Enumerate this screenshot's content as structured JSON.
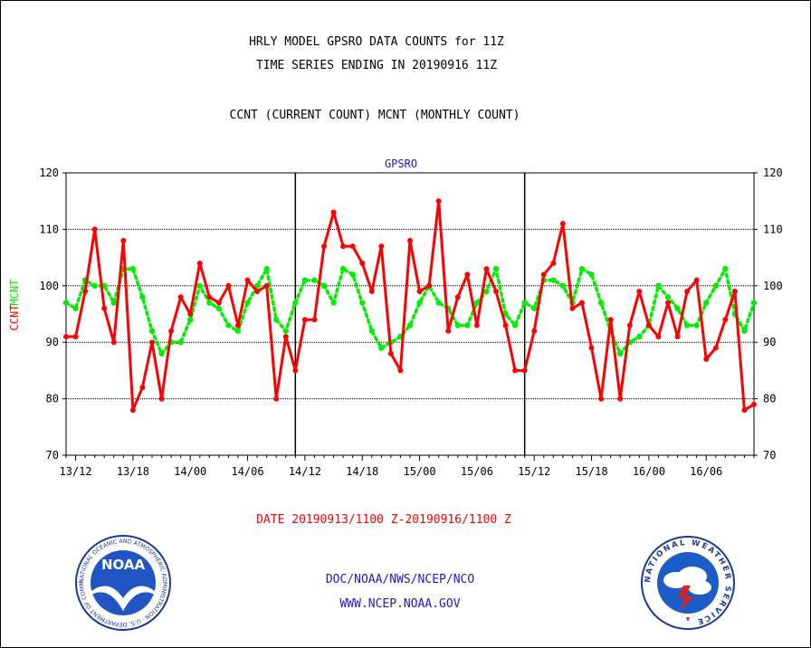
{
  "header": {
    "title_line1": "HRLY MODEL GPSRO DATA COUNTS for 11Z",
    "title_line2": "TIME SERIES ENDING IN 20190916 11Z",
    "subtitle": "CCNT (CURRENT COUNT) MCNT (MONTHLY COUNT)"
  },
  "footer": {
    "date_range": "DATE 20190913/1100 Z-20190916/1100 Z",
    "credit_line1": "DOC/NOAA/NWS/NCEP/NCO",
    "credit_line2": "WWW.NCEP.NOAA.GOV"
  },
  "logos": {
    "noaa_text": "NOAA",
    "noaa_ring_text": "NATIONAL OCEANIC AND ATMOSPHERIC ADMINISTRATION · U.S. DEPARTMENT OF COMMERCE",
    "nws_ring_text": "NATIONAL WEATHER SERVICE"
  },
  "colors": {
    "ccnt": "#ff0000",
    "mcnt": "#00ee00",
    "title": "#000000",
    "date": "#ff0000",
    "credit": "#1a1ad0",
    "panel_label": "#1a1ad0"
  },
  "chart_data": {
    "type": "line",
    "title": "GPSRO",
    "ylabel_left": "CCNT",
    "ylabel_right": "MCNT",
    "ylim": [
      70,
      120
    ],
    "yticks": [
      70,
      80,
      90,
      100,
      110,
      120
    ],
    "grid": true,
    "x_start_hour": 11,
    "x_end_hour": 83,
    "x_tick_hours": [
      12,
      18,
      24,
      30,
      36,
      42,
      48,
      54,
      60,
      66,
      72,
      78
    ],
    "x_tick_labels": [
      "13/12",
      "13/18",
      "14/00",
      "14/06",
      "14/12",
      "14/18",
      "15/00",
      "15/06",
      "15/12",
      "15/18",
      "16/00",
      "16/06"
    ],
    "day_boundary_hours": [
      35,
      59,
      83
    ],
    "series": [
      {
        "name": "CCNT",
        "color": "#ff0000",
        "values": [
          91,
          91,
          99,
          110,
          96,
          90,
          108,
          78,
          82,
          90,
          80,
          92,
          98,
          95,
          104,
          98,
          97,
          100,
          93,
          101,
          99,
          100,
          80,
          91,
          85,
          94,
          94,
          107,
          113,
          107,
          107,
          104,
          99,
          107,
          88,
          85,
          108,
          99,
          100,
          115,
          92,
          98,
          102,
          93,
          103,
          99,
          93,
          85,
          85,
          92,
          102,
          104,
          111,
          96,
          97,
          89,
          80,
          94,
          80,
          93,
          99,
          93,
          91,
          97,
          91,
          99,
          101,
          87,
          89,
          94,
          99,
          78,
          79
        ]
      },
      {
        "name": "MCNT",
        "color": "#00ee00",
        "values": [
          97,
          96,
          101,
          100,
          100,
          97,
          103,
          103,
          98,
          92,
          88,
          90,
          90,
          94,
          100,
          97,
          96,
          93,
          92,
          97,
          100,
          103,
          94,
          92,
          97,
          101,
          101,
          100,
          97,
          103,
          102,
          97,
          92,
          89,
          90,
          91,
          93,
          97,
          100,
          97,
          96,
          93,
          93,
          97,
          99,
          103,
          95,
          93,
          97,
          96,
          101,
          101,
          100,
          97,
          103,
          102,
          97,
          92,
          88,
          90,
          91,
          93,
          100,
          98,
          96,
          93,
          93,
          97,
          100,
          103,
          95,
          92,
          97
        ]
      }
    ]
  }
}
